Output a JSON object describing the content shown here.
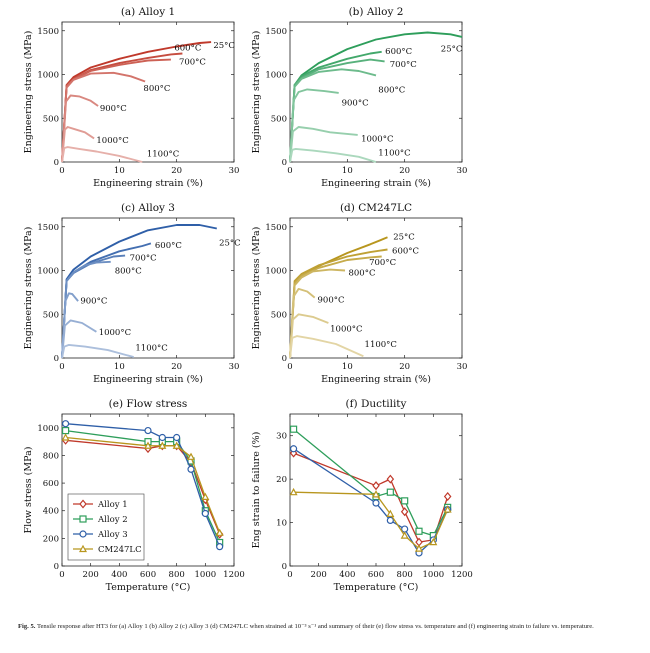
{
  "caption": {
    "label": "Fig. 5.",
    "text": "Tensile response after HT3 for (a) Alloy 1 (b) Alloy 2 (c) Alloy 3 (d) CM247LC when strained at 10⁻³ s⁻¹ and summary of their (e) flow stress vs. temperature and (f) engineering strain to failure vs. temperature."
  },
  "chart_data": [
    {
      "id": "a",
      "type": "line",
      "title": "(a) Alloy 1",
      "xlabel": "Engineering strain (%)",
      "ylabel": "Engineering stress (MPa)",
      "xlim": [
        0,
        30
      ],
      "ylim": [
        0,
        1600
      ],
      "xticks": [
        0,
        10,
        20,
        30
      ],
      "yticks": [
        0,
        500,
        1000,
        1500
      ],
      "color": "#c0392b",
      "series": [
        {
          "name": "25°C",
          "x": [
            0,
            0.8,
            2,
            5,
            10,
            15,
            20,
            24,
            26
          ],
          "y": [
            0,
            880,
            970,
            1080,
            1180,
            1260,
            1320,
            1360,
            1370
          ]
        },
        {
          "name": "600°C",
          "x": [
            0,
            0.8,
            2,
            5,
            10,
            15,
            19,
            21
          ],
          "y": [
            0,
            870,
            950,
            1050,
            1130,
            1190,
            1230,
            1240
          ]
        },
        {
          "name": "700°C",
          "x": [
            0,
            0.8,
            2,
            5,
            10,
            15,
            19
          ],
          "y": [
            0,
            870,
            945,
            1040,
            1110,
            1160,
            1170
          ]
        },
        {
          "name": "800°C",
          "x": [
            0,
            0.8,
            2,
            5,
            9,
            12,
            14.5
          ],
          "y": [
            0,
            850,
            940,
            1010,
            1020,
            980,
            920
          ]
        },
        {
          "name": "900°C",
          "x": [
            0,
            0.7,
            1.5,
            3,
            5,
            6.3
          ],
          "y": [
            0,
            690,
            760,
            750,
            700,
            640
          ]
        },
        {
          "name": "1000°C",
          "x": [
            0,
            0.5,
            1,
            2,
            4,
            5.6
          ],
          "y": [
            0,
            370,
            400,
            380,
            340,
            270
          ]
        },
        {
          "name": "1100°C",
          "x": [
            0,
            0.4,
            1,
            3,
            6,
            10,
            14
          ],
          "y": [
            0,
            160,
            170,
            150,
            120,
            70,
            0
          ]
        }
      ],
      "annotations": [
        {
          "text": "600°C",
          "x": 19.6,
          "y": 1310
        },
        {
          "text": "25°C",
          "x": 26.4,
          "y": 1340
        },
        {
          "text": "700°C",
          "x": 20.4,
          "y": 1150
        },
        {
          "text": "800°C",
          "x": 14.2,
          "y": 845
        },
        {
          "text": "900°C",
          "x": 6.6,
          "y": 620
        },
        {
          "text": "1000°C",
          "x": 6.0,
          "y": 250
        },
        {
          "text": "1100°C",
          "x": 14.8,
          "y": 100
        }
      ]
    },
    {
      "id": "b",
      "type": "line",
      "title": "(b) Alloy 2",
      "xlabel": "Engineering strain (%)",
      "ylabel": "Engineering stress (MPa)",
      "xlim": [
        0,
        30
      ],
      "ylim": [
        0,
        1600
      ],
      "xticks": [
        0,
        10,
        20,
        30
      ],
      "yticks": [
        0,
        500,
        1000,
        1500
      ],
      "color": "#2e9e5b",
      "series": [
        {
          "name": "25°C",
          "x": [
            0,
            0.8,
            2,
            5,
            10,
            15,
            20,
            24,
            28,
            30
          ],
          "y": [
            0,
            880,
            990,
            1130,
            1290,
            1400,
            1460,
            1480,
            1460,
            1430
          ]
        },
        {
          "name": "600°C",
          "x": [
            0,
            0.8,
            2,
            5,
            10,
            14,
            16
          ],
          "y": [
            0,
            880,
            980,
            1080,
            1180,
            1240,
            1260
          ]
        },
        {
          "name": "700°C",
          "x": [
            0,
            0.8,
            2,
            5,
            10,
            14,
            16.5
          ],
          "y": [
            0,
            880,
            960,
            1060,
            1130,
            1170,
            1150
          ]
        },
        {
          "name": "800°C",
          "x": [
            0,
            0.8,
            2,
            5,
            9,
            12,
            15
          ],
          "y": [
            0,
            860,
            950,
            1030,
            1060,
            1040,
            990
          ]
        },
        {
          "name": "900°C",
          "x": [
            0,
            0.6,
            1.5,
            3,
            6,
            8.5
          ],
          "y": [
            0,
            700,
            800,
            830,
            810,
            790
          ]
        },
        {
          "name": "1000°C",
          "x": [
            0,
            0.5,
            1.5,
            4,
            7,
            11.8
          ],
          "y": [
            0,
            350,
            400,
            380,
            340,
            310
          ]
        },
        {
          "name": "1100°C",
          "x": [
            0,
            0.4,
            1,
            4,
            8,
            12,
            15
          ],
          "y": [
            0,
            140,
            150,
            130,
            100,
            60,
            0
          ]
        }
      ],
      "annotations": [
        {
          "text": "600°C",
          "x": 16.6,
          "y": 1270
        },
        {
          "text": "25°C",
          "x": 26.3,
          "y": 1300
        },
        {
          "text": "700°C",
          "x": 17.4,
          "y": 1120
        },
        {
          "text": "800°C",
          "x": 15.4,
          "y": 830
        },
        {
          "text": "900°C",
          "x": 9.0,
          "y": 680
        },
        {
          "text": "1000°C",
          "x": 12.4,
          "y": 270
        },
        {
          "text": "1100°C",
          "x": 15.4,
          "y": 110
        }
      ]
    },
    {
      "id": "c",
      "type": "line",
      "title": "(c) Alloy 3",
      "xlabel": "Engineering strain (%)",
      "ylabel": "Engineering stress (MPa)",
      "xlim": [
        0,
        30
      ],
      "ylim": [
        0,
        1600
      ],
      "xticks": [
        0,
        10,
        20,
        30
      ],
      "yticks": [
        0,
        500,
        1000,
        1500
      ],
      "color": "#2f5fa8",
      "series": [
        {
          "name": "25°C",
          "x": [
            0,
            0.8,
            2,
            5,
            10,
            15,
            20,
            24,
            27
          ],
          "y": [
            0,
            900,
            1010,
            1160,
            1330,
            1460,
            1520,
            1520,
            1480
          ]
        },
        {
          "name": "600°C",
          "x": [
            0,
            0.8,
            2,
            5,
            10,
            14,
            15.5
          ],
          "y": [
            0,
            890,
            980,
            1100,
            1220,
            1280,
            1310
          ]
        },
        {
          "name": "700°C",
          "x": [
            0,
            0.8,
            2,
            5,
            9,
            11
          ],
          "y": [
            0,
            880,
            970,
            1080,
            1160,
            1170
          ]
        },
        {
          "name": "800°C",
          "x": [
            0,
            0.8,
            2,
            4,
            6,
            8.5
          ],
          "y": [
            0,
            880,
            980,
            1060,
            1090,
            1100
          ]
        },
        {
          "name": "900°C",
          "x": [
            0,
            0.6,
            1.2,
            1.8,
            2.8
          ],
          "y": [
            0,
            650,
            740,
            730,
            650
          ]
        },
        {
          "name": "1000°C",
          "x": [
            0,
            0.5,
            1.5,
            3.5,
            6
          ],
          "y": [
            0,
            370,
            430,
            400,
            300
          ]
        },
        {
          "name": "1100°C",
          "x": [
            0,
            0.4,
            1.2,
            4,
            8,
            12.5
          ],
          "y": [
            0,
            130,
            150,
            130,
            90,
            10
          ]
        }
      ],
      "annotations": [
        {
          "text": "600°C",
          "x": 16.2,
          "y": 1290
        },
        {
          "text": "25°C",
          "x": 27.4,
          "y": 1320
        },
        {
          "text": "700°C",
          "x": 11.8,
          "y": 1150
        },
        {
          "text": "800°C",
          "x": 9.2,
          "y": 1000
        },
        {
          "text": "900°C",
          "x": 3.2,
          "y": 660
        },
        {
          "text": "1000°C",
          "x": 6.4,
          "y": 300
        },
        {
          "text": "1100°C",
          "x": 12.8,
          "y": 120
        }
      ]
    },
    {
      "id": "d",
      "type": "line",
      "title": "(d) CM247LC",
      "xlabel": "Engineering strain (%)",
      "ylabel": "Engineering stress (MPa)",
      "xlim": [
        0,
        30
      ],
      "ylim": [
        0,
        1600
      ],
      "xticks": [
        0,
        10,
        20,
        30
      ],
      "yticks": [
        0,
        500,
        1000,
        1500
      ],
      "color": "#b8961e",
      "series": [
        {
          "name": "25°C",
          "x": [
            0,
            0.8,
            2,
            5,
            10,
            14,
            17
          ],
          "y": [
            0,
            850,
            940,
            1050,
            1200,
            1300,
            1380
          ]
        },
        {
          "name": "600°C",
          "x": [
            0,
            0.8,
            2,
            5,
            10,
            14,
            17
          ],
          "y": [
            0,
            880,
            960,
            1060,
            1160,
            1210,
            1240
          ]
        },
        {
          "name": "700°C",
          "x": [
            0,
            0.8,
            2,
            5,
            10,
            14,
            16
          ],
          "y": [
            0,
            850,
            940,
            1030,
            1120,
            1150,
            1160
          ]
        },
        {
          "name": "800°C",
          "x": [
            0,
            0.8,
            2,
            4,
            7,
            9.6
          ],
          "y": [
            0,
            830,
            920,
            990,
            1010,
            1000
          ]
        },
        {
          "name": "900°C",
          "x": [
            0,
            0.6,
            1.5,
            3,
            4.3
          ],
          "y": [
            0,
            700,
            790,
            760,
            690
          ]
        },
        {
          "name": "1000°C",
          "x": [
            0,
            0.5,
            1.5,
            4,
            6.7
          ],
          "y": [
            0,
            440,
            500,
            470,
            400
          ]
        },
        {
          "name": "1100°C",
          "x": [
            0,
            0.4,
            1.2,
            4,
            8,
            12.8
          ],
          "y": [
            0,
            230,
            250,
            220,
            160,
            20
          ]
        }
      ],
      "annotations": [
        {
          "text": "25°C",
          "x": 18.0,
          "y": 1390
        },
        {
          "text": "600°C",
          "x": 17.8,
          "y": 1230
        },
        {
          "text": "700°C",
          "x": 13.8,
          "y": 1100
        },
        {
          "text": "800°C",
          "x": 10.2,
          "y": 975
        },
        {
          "text": "900°C",
          "x": 4.8,
          "y": 670
        },
        {
          "text": "1000°C",
          "x": 7.0,
          "y": 340
        },
        {
          "text": "1100°C",
          "x": 13.0,
          "y": 160
        }
      ]
    },
    {
      "id": "e",
      "type": "line",
      "title": "(e) Flow stress",
      "xlabel": "Temperature (°C)",
      "ylabel": "Flow stress (MPa)",
      "xlim": [
        0,
        1200
      ],
      "ylim": [
        0,
        1100
      ],
      "xticks": [
        0,
        200,
        400,
        600,
        800,
        1000,
        1200
      ],
      "yticks": [
        0,
        200,
        400,
        600,
        800,
        1000
      ],
      "legend": "lower-left",
      "series": [
        {
          "name": "Alloy 1",
          "color": "#c0392b",
          "marker": "diamond",
          "x": [
            25,
            600,
            700,
            800,
            900,
            1000,
            1100
          ],
          "y": [
            910,
            850,
            870,
            870,
            750,
            480,
            230
          ]
        },
        {
          "name": "Alloy 2",
          "color": "#2e9e5b",
          "marker": "square",
          "x": [
            25,
            600,
            700,
            800,
            900,
            1000,
            1100
          ],
          "y": [
            980,
            900,
            900,
            900,
            760,
            400,
            170
          ]
        },
        {
          "name": "Alloy 3",
          "color": "#2f5fa8",
          "marker": "circle",
          "x": [
            25,
            600,
            700,
            800,
            900,
            1000,
            1100
          ],
          "y": [
            1030,
            980,
            930,
            930,
            700,
            380,
            140
          ]
        },
        {
          "name": "CM247LC",
          "color": "#b8961e",
          "marker": "triangle",
          "x": [
            25,
            600,
            700,
            800,
            900,
            1000,
            1100
          ],
          "y": [
            930,
            870,
            870,
            870,
            790,
            500,
            240
          ]
        }
      ]
    },
    {
      "id": "f",
      "type": "line",
      "title": "(f) Ductility",
      "xlabel": "Temperature (°C)",
      "ylabel": "Eng strain to failure (%)",
      "xlim": [
        0,
        1200
      ],
      "ylim": [
        0,
        35
      ],
      "xticks": [
        0,
        200,
        400,
        600,
        800,
        1000,
        1200
      ],
      "yticks": [
        0,
        10,
        20,
        30
      ],
      "series": [
        {
          "name": "Alloy 1",
          "color": "#c0392b",
          "marker": "diamond",
          "x": [
            25,
            600,
            700,
            800,
            900,
            1000,
            1100
          ],
          "y": [
            26,
            18.5,
            20,
            12.5,
            5.5,
            6,
            16
          ]
        },
        {
          "name": "Alloy 2",
          "color": "#2e9e5b",
          "marker": "square",
          "x": [
            25,
            600,
            700,
            800,
            900,
            1000,
            1100
          ],
          "y": [
            31.5,
            16,
            17,
            15,
            8,
            7,
            13.5
          ]
        },
        {
          "name": "Alloy 3",
          "color": "#2f5fa8",
          "marker": "circle",
          "x": [
            25,
            600,
            700,
            800,
            900,
            1000,
            1100
          ],
          "y": [
            27,
            14.5,
            10.5,
            8.5,
            3,
            6,
            13
          ]
        },
        {
          "name": "CM247LC",
          "color": "#b8961e",
          "marker": "triangle",
          "x": [
            25,
            600,
            700,
            800,
            900,
            1000,
            1100
          ],
          "y": [
            17,
            16.5,
            12,
            7,
            4,
            5.5,
            13
          ]
        }
      ]
    }
  ]
}
